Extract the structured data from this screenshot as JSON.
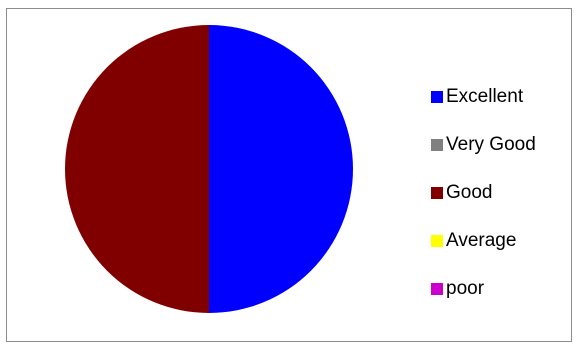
{
  "chart_data": {
    "type": "pie",
    "title": "",
    "categories": [
      "Excellent",
      "Very Good",
      "Good",
      "Average",
      "poor"
    ],
    "values": [
      50,
      0,
      50,
      0,
      0
    ],
    "colors": [
      "#0000ff",
      "#808080",
      "#800000",
      "#ffff00",
      "#cc00cc"
    ],
    "start_angle_deg": 0,
    "direction": "clockwise",
    "legend": "right"
  }
}
